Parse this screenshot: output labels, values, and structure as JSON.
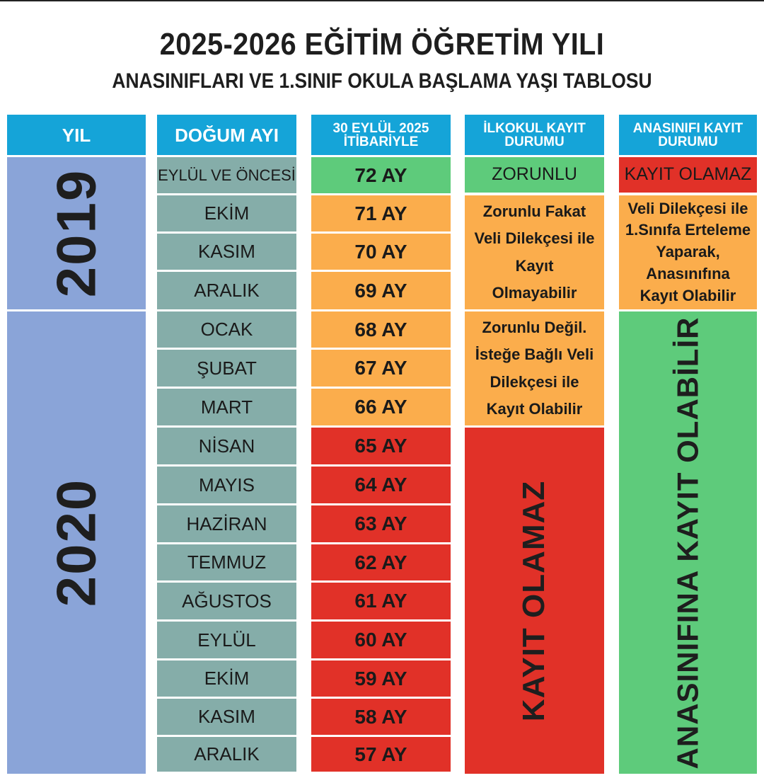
{
  "title": "2025-2026 EĞİTİM ÖĞRETİM YILI",
  "subtitle": "ANASINIFLARI VE 1.SINIF OKULA BAŞLAMA YAŞI TABLOSU",
  "headers": {
    "year": "YIL",
    "birth_month": "DOĞUM AYI",
    "age_line1": "30 EYLÜL 2025",
    "age_line2": "İTİBARİYLE",
    "primary_line1": "İLKOKUL KAYIT",
    "primary_line2": "DURUMU",
    "kinder_line1": "ANASINIFI KAYIT",
    "kinder_line2": "DURUMU"
  },
  "years": [
    "2019",
    "2020"
  ],
  "rows": [
    {
      "month": "EYLÜL VE ÖNCESİ",
      "age": "72 AY"
    },
    {
      "month": "EKİM",
      "age": "71 AY"
    },
    {
      "month": "KASIM",
      "age": "70 AY"
    },
    {
      "month": "ARALIK",
      "age": "69 AY"
    },
    {
      "month": "OCAK",
      "age": "68 AY"
    },
    {
      "month": "ŞUBAT",
      "age": "67 AY"
    },
    {
      "month": "MART",
      "age": "66 AY"
    },
    {
      "month": "NİSAN",
      "age": "65 AY"
    },
    {
      "month": "MAYIS",
      "age": "64 AY"
    },
    {
      "month": "HAZİRAN",
      "age": "63 AY"
    },
    {
      "month": "TEMMUZ",
      "age": "62 AY"
    },
    {
      "month": "AĞUSTOS",
      "age": "61 AY"
    },
    {
      "month": "EYLÜL",
      "age": "60 AY"
    },
    {
      "month": "EKİM",
      "age": "59 AY"
    },
    {
      "month": "KASIM",
      "age": "58 AY"
    },
    {
      "month": "ARALIK",
      "age": "57 AY"
    }
  ],
  "primary_status": {
    "mandatory": "ZORUNLU",
    "mandatory_petition": [
      "Zorunlu Fakat",
      "Veli Dilekçesi ile",
      "Kayıt",
      "Olmayabilir"
    ],
    "optional": [
      "Zorunlu Değil.",
      "İsteğe Bağlı Veli",
      "Dilekçesi ile",
      "Kayıt Olabilir"
    ],
    "not_allowed": "KAYIT OLAMAZ"
  },
  "kinder_status": {
    "not_allowed": "KAYIT OLAMAZ",
    "postpone": [
      "Veli Dilekçesi ile",
      "1.Sınıfa Erteleme",
      "Yaparak,",
      "Anasınıfına",
      "Kayıt Olabilir"
    ],
    "allowed": "ANASINIFINA KAYIT OLABİLİR"
  },
  "colors": {
    "header_blue": "#15a4d8",
    "year_blue": "#8aa4d8",
    "month_teal": "#85ada9",
    "green": "#5ecb7b",
    "orange": "#fbad4c",
    "red": "#e13128"
  }
}
